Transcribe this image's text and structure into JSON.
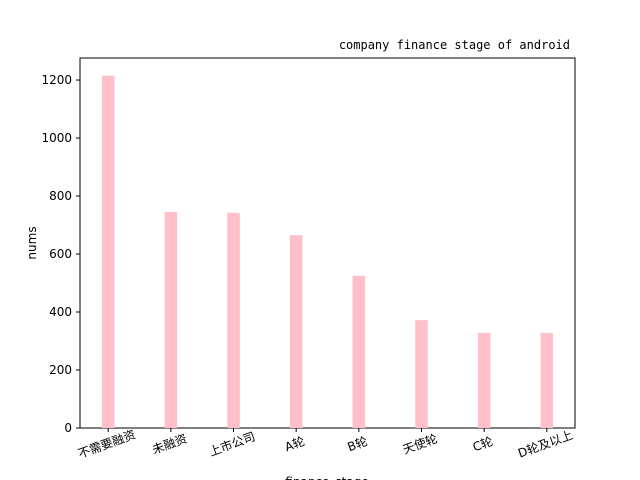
{
  "chart_data": {
    "type": "bar",
    "title": "company finance stage of android",
    "xlabel": "finance_stage",
    "ylabel": "nums",
    "categories": [
      "不需要融资",
      "未融资",
      "上市公司",
      "A轮",
      "B轮",
      "天使轮",
      "C轮",
      "D轮及以上"
    ],
    "values": [
      1215,
      745,
      742,
      665,
      525,
      372,
      328,
      328
    ],
    "color": "#ffc0cb",
    "ylim": [
      0,
      1276
    ],
    "yticks": [
      0,
      200,
      400,
      600,
      800,
      1000,
      1200
    ],
    "grid": false
  }
}
